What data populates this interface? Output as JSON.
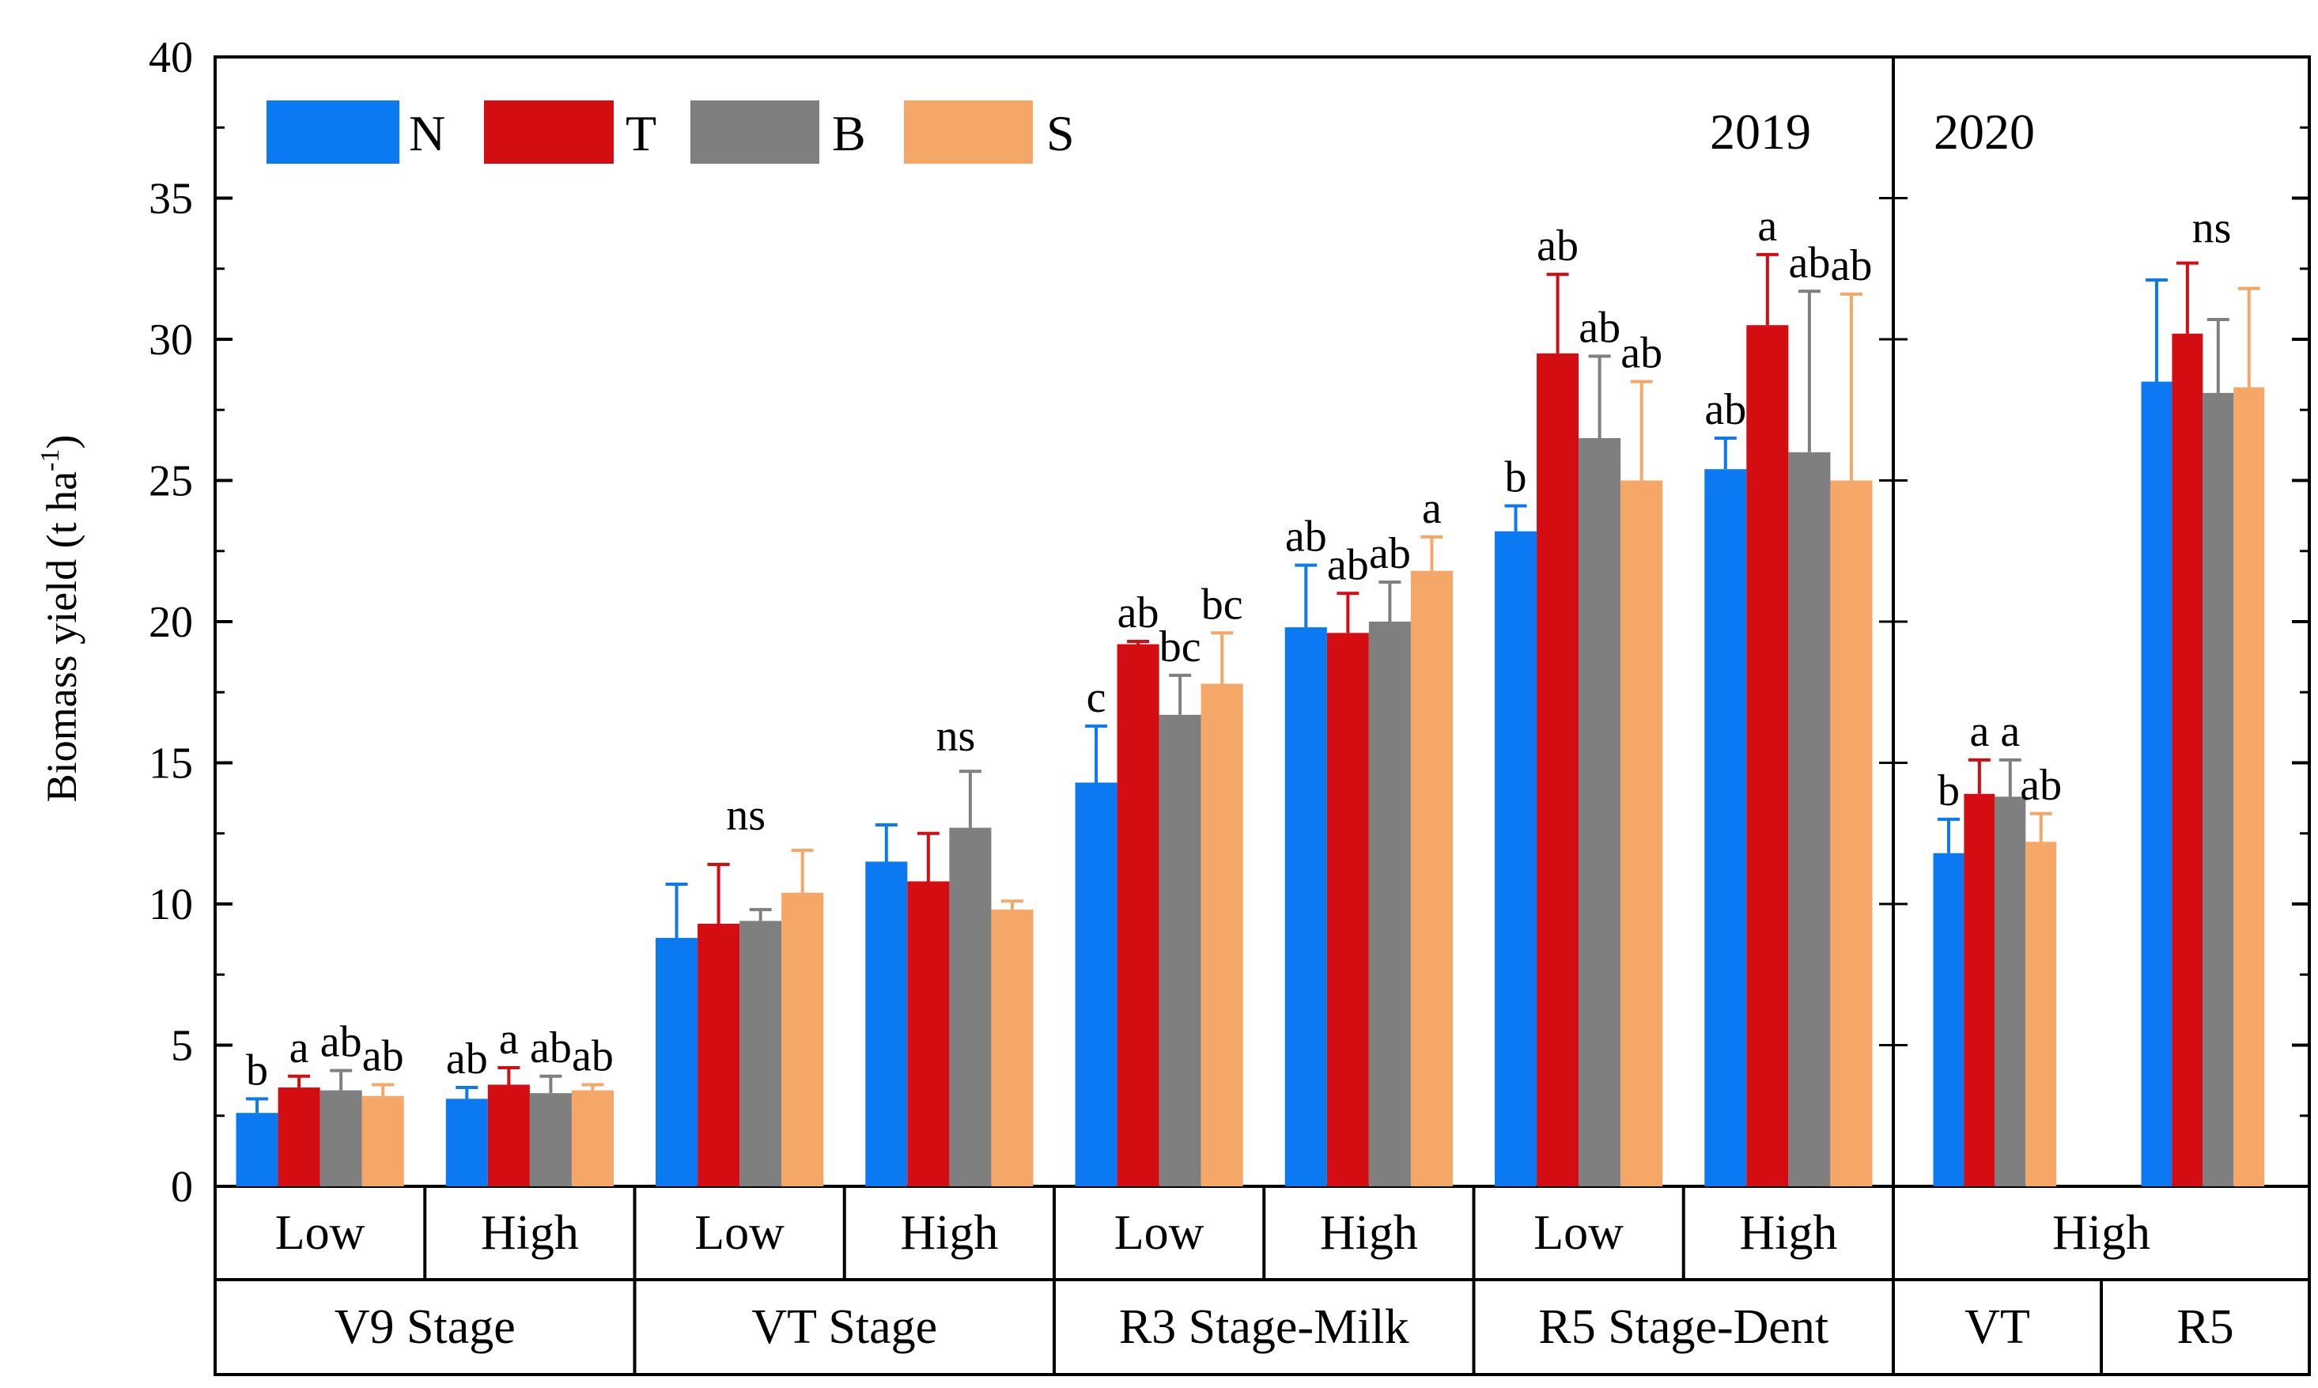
{
  "chart_data": {
    "type": "bar",
    "ylabel": "Biomass yield (t ha",
    "ylabel_sup": "-1",
    "ylabel_close": ")",
    "ylim": [
      0,
      40
    ],
    "yticks": [
      0,
      5,
      10,
      15,
      20,
      25,
      30,
      35,
      40
    ],
    "yticks_text": [
      "0",
      "5",
      "10",
      "15",
      "20",
      "25",
      "30",
      "35",
      "40"
    ],
    "legend": [
      "N",
      "T",
      "B",
      "S"
    ],
    "colors": {
      "N": "#0a79f2",
      "T": "#d40d12",
      "B": "#7f7f7f",
      "S": "#f4a766"
    },
    "panels": [
      {
        "year": "2019",
        "groups_in_panel": 8
      },
      {
        "year": "2020",
        "groups_in_panel": 2
      }
    ],
    "groups": [
      {
        "level": "Low",
        "stage": "V9 Stage",
        "values": [
          2.6,
          3.5,
          3.4,
          3.2
        ],
        "errors": [
          0.5,
          0.4,
          0.7,
          0.4
        ],
        "sig": [
          "b",
          "a",
          "ab",
          "ab"
        ]
      },
      {
        "level": "High",
        "stage": "V9 Stage",
        "values": [
          3.1,
          3.6,
          3.3,
          3.4
        ],
        "errors": [
          0.4,
          0.6,
          0.6,
          0.2
        ],
        "sig": [
          "ab",
          "a",
          "ab",
          "ab"
        ]
      },
      {
        "level": "Low",
        "stage": "VT Stage",
        "values": [
          8.8,
          9.3,
          9.4,
          10.4
        ],
        "errors": [
          1.9,
          2.1,
          0.4,
          1.5
        ],
        "sig": [
          "ns"
        ]
      },
      {
        "level": "High",
        "stage": "VT Stage",
        "values": [
          11.5,
          10.8,
          12.7,
          9.8
        ],
        "errors": [
          1.3,
          1.7,
          2.0,
          0.3
        ],
        "sig": [
          "ns"
        ]
      },
      {
        "level": "Low",
        "stage": "R3 Stage-Milk",
        "values": [
          14.3,
          19.2,
          16.7,
          17.8
        ],
        "errors": [
          2.0,
          0.1,
          1.4,
          1.8
        ],
        "sig": [
          "c",
          "ab",
          "bc",
          "bc"
        ]
      },
      {
        "level": "High",
        "stage": "R3 Stage-Milk",
        "values": [
          19.8,
          19.6,
          20.0,
          21.8
        ],
        "errors": [
          2.2,
          1.4,
          1.4,
          1.2
        ],
        "sig": [
          "ab",
          "ab",
          "ab",
          "a"
        ]
      },
      {
        "level": "Low",
        "stage": "R5 Stage-Dent",
        "values": [
          23.2,
          29.5,
          26.5,
          25.0
        ],
        "errors": [
          0.9,
          2.8,
          2.9,
          3.5
        ],
        "sig": [
          "b",
          "ab",
          "ab",
          "ab"
        ]
      },
      {
        "level": "High",
        "stage": "R5 Stage-Dent",
        "values": [
          25.4,
          30.5,
          26.0,
          25.0
        ],
        "errors": [
          1.1,
          2.5,
          5.7,
          6.6
        ],
        "sig": [
          "ab",
          "a",
          "ab",
          "ab"
        ]
      },
      {
        "level": "High",
        "stage": "VT",
        "values": [
          11.8,
          13.9,
          13.8,
          12.2
        ],
        "errors": [
          1.2,
          1.2,
          1.3,
          1.0
        ],
        "sig": [
          "b",
          "a",
          "a",
          "ab"
        ]
      },
      {
        "level": "High",
        "stage": "R5",
        "values": [
          28.5,
          30.2,
          28.1,
          28.3
        ],
        "errors": [
          3.6,
          2.5,
          2.6,
          3.5
        ],
        "sig": [
          "ns"
        ]
      }
    ],
    "level_row_labels": [
      "Low",
      "High",
      "Low",
      "High",
      "Low",
      "High",
      "Low",
      "High",
      "High"
    ],
    "stage_row_labels": [
      "V9 Stage",
      "VT Stage",
      "R3 Stage-Milk",
      "R5 Stage-Dent",
      "VT",
      "R5"
    ]
  }
}
